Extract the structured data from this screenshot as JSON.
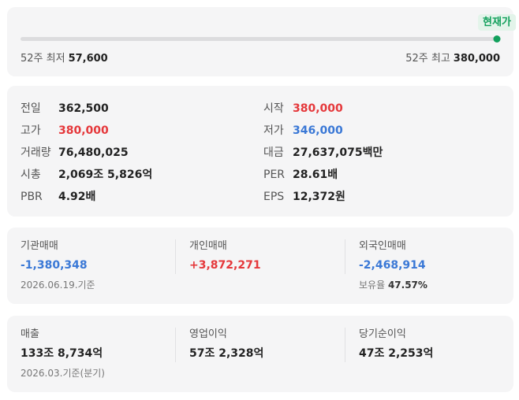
{
  "range": {
    "current_label": "현재가",
    "low_label": "52주 최저",
    "low_value": "57,600",
    "high_label": "52주 최고",
    "high_value": "380,000",
    "current_position": 1.0,
    "accent_color": "#12a05c"
  },
  "stats": {
    "items": [
      {
        "label": "전일",
        "value": "362,500",
        "color": "default"
      },
      {
        "label": "시작",
        "value": "380,000",
        "color": "red"
      },
      {
        "label": "고가",
        "value": "380,000",
        "color": "red"
      },
      {
        "label": "저가",
        "value": "346,000",
        "color": "blue"
      },
      {
        "label": "거래량",
        "value": "76,480,025",
        "color": "default"
      },
      {
        "label": "대금",
        "value": "27,637,075백만",
        "color": "default"
      },
      {
        "label": "시총",
        "value": "2,069조 5,826억",
        "color": "default"
      },
      {
        "label": "PER",
        "value": "28.61배",
        "color": "default"
      },
      {
        "label": "PBR",
        "value": "4.92배",
        "color": "default"
      },
      {
        "label": "EPS",
        "value": "12,372원",
        "color": "default"
      }
    ]
  },
  "trading": {
    "institution": {
      "label": "기관매매",
      "value": "-1,380,348",
      "color": "blue"
    },
    "individual": {
      "label": "개인매매",
      "value": "+3,872,271",
      "color": "red"
    },
    "foreign": {
      "label": "외국인매매",
      "value": "-2,468,914",
      "color": "blue",
      "holding_label": "보유율",
      "holding_value": "47.57%"
    },
    "date_note": "2026.06.19.기준"
  },
  "financials": {
    "revenue": {
      "label": "매출",
      "value": "133조 8,734억"
    },
    "operating_income": {
      "label": "영업이익",
      "value": "57조 2,328억"
    },
    "net_income": {
      "label": "당기순이익",
      "value": "47조 2,253억"
    },
    "date_note": "2026.03.기준(분기)"
  },
  "colors": {
    "red": "#e5383b",
    "blue": "#3a78d6",
    "green": "#12a05c"
  }
}
